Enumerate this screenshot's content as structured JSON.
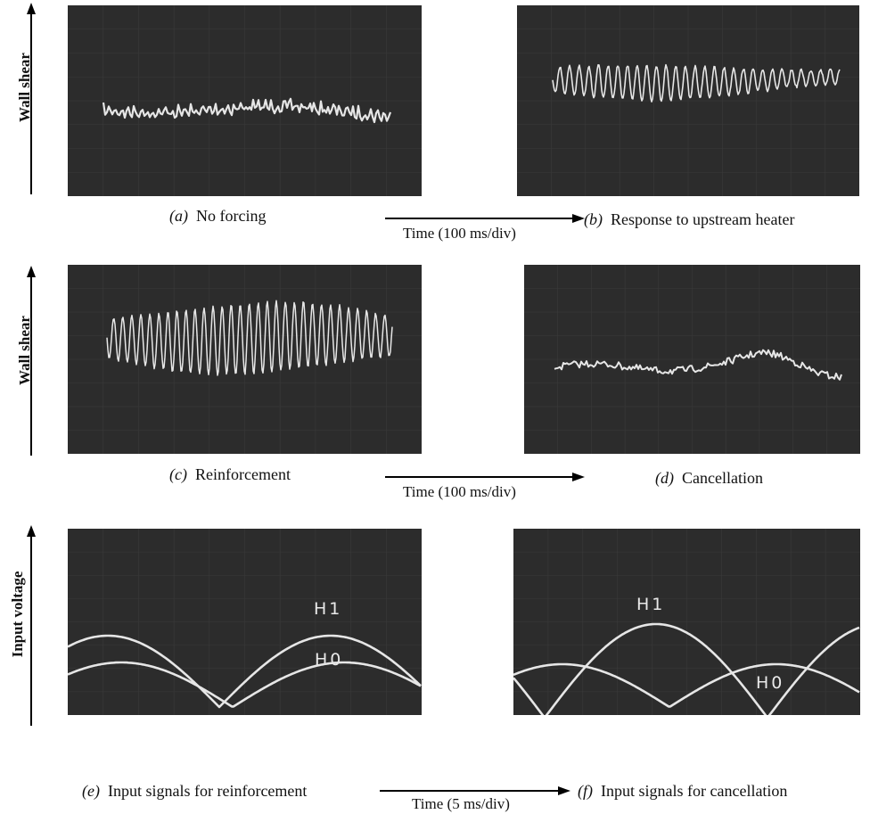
{
  "rows": [
    {
      "ylabel": "Wall shear",
      "time_label": "Time (100 ms/div)",
      "panels": [
        {
          "label": "(a)",
          "caption": "No forcing"
        },
        {
          "label": "(b)",
          "caption": "Response to upstream heater"
        }
      ]
    },
    {
      "ylabel": "Wall shear",
      "time_label": "Time (100 ms/div)",
      "panels": [
        {
          "label": "(c)",
          "caption": "Reinforcement"
        },
        {
          "label": "(d)",
          "caption": "Cancellation"
        }
      ]
    },
    {
      "ylabel": "Input voltage",
      "time_label": "Time (5 ms/div)",
      "panels": [
        {
          "label": "(e)",
          "caption": "Input signals for reinforcement",
          "traces": [
            "H1",
            "H0"
          ]
        },
        {
          "label": "(f)",
          "caption": "Input signals for cancellation",
          "traces": [
            "H1",
            "H0"
          ]
        }
      ]
    }
  ],
  "colors": {
    "screen": "#2c2c2c",
    "trace": "#e6e6e6",
    "grid": "#3a3a3a"
  }
}
